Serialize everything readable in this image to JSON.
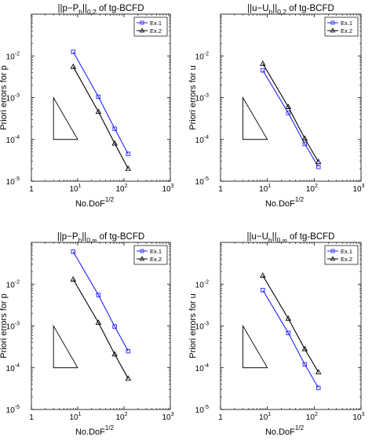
{
  "chart_data": [
    {
      "type": "line",
      "title": "||p−P_h||_{0,2} of tg-BCFD",
      "title_parts": {
        "a": "||p−P",
        "b": "h",
        "c": "||",
        "d": "0,2",
        "e": " of tg-BCFD"
      },
      "xlabel": "No.DoF",
      "xlabel_exp": "1/2",
      "ylabel": "Priori errors for p",
      "xscale": "log",
      "yscale": "log",
      "xlim": [
        1,
        1000
      ],
      "ylim": [
        1e-05,
        0.1
      ],
      "x_ticks": [
        "1",
        "2",
        "3"
      ],
      "y_ticks": [
        "-5",
        "-4",
        "-3",
        "-2"
      ],
      "grid": false,
      "legend_position": "top-right",
      "slope_triangle": {
        "x": [
          3,
          10
        ],
        "y": [
          0.0001,
          0.001
        ]
      },
      "series": [
        {
          "name": "Ex.1",
          "color": "#2323ff",
          "marker": "square",
          "x": [
            8,
            28,
            63,
            123
          ],
          "y": [
            0.0125,
            0.00105,
            0.00018,
            4.5e-05
          ]
        },
        {
          "name": "Ex.2",
          "color": "#000000",
          "marker": "triangle",
          "x": [
            8,
            28,
            63,
            123
          ],
          "y": [
            0.0055,
            0.00046,
            8e-05,
            2e-05
          ]
        }
      ]
    },
    {
      "type": "line",
      "title": "||u−U_h||_{0,2} of tg-BCFD",
      "title_parts": {
        "a": "||u−U",
        "b": "h",
        "c": "||",
        "d": "0,2",
        "e": " of tg-BCFD"
      },
      "xlabel": "No.DoF",
      "xlabel_exp": "1/2",
      "ylabel": "Priori errors for u",
      "xscale": "log",
      "yscale": "log",
      "xlim": [
        1,
        1000
      ],
      "ylim": [
        1e-05,
        0.1
      ],
      "x_ticks": [
        "1",
        "2",
        "3"
      ],
      "y_ticks": [
        "-5",
        "-4",
        "-3",
        "-2"
      ],
      "grid": false,
      "legend_position": "top-right",
      "slope_triangle": {
        "x": [
          3,
          10
        ],
        "y": [
          0.0001,
          0.001
        ]
      },
      "series": [
        {
          "name": "Ex.1",
          "color": "#2323ff",
          "marker": "square",
          "x": [
            8,
            28,
            63,
            123
          ],
          "y": [
            0.0045,
            0.00043,
            7.8e-05,
            2.2e-05
          ]
        },
        {
          "name": "Ex.2",
          "color": "#000000",
          "marker": "triangle",
          "x": [
            8,
            28,
            63,
            123
          ],
          "y": [
            0.0065,
            0.0006,
            0.000105,
            2.9e-05
          ]
        }
      ]
    },
    {
      "type": "line",
      "title": "||p−P_h||_{0,∞} of tg-BCFD",
      "title_parts": {
        "a": "||p−P",
        "b": "h",
        "c": "||",
        "d": "0,∞",
        "e": " of tg-BCFD"
      },
      "xlabel": "No.DoF",
      "xlabel_exp": "1/2",
      "ylabel": "Priori errors for p",
      "xscale": "log",
      "yscale": "log",
      "xlim": [
        1,
        1000
      ],
      "ylim": [
        1e-05,
        0.1
      ],
      "x_ticks": [
        "1",
        "2",
        "3"
      ],
      "y_ticks": [
        "-5",
        "-4",
        "-3",
        "-2"
      ],
      "grid": false,
      "legend_position": "top-right",
      "slope_triangle": {
        "x": [
          3,
          10
        ],
        "y": [
          0.0001,
          0.001
        ]
      },
      "series": [
        {
          "name": "Ex.1",
          "color": "#2323ff",
          "marker": "square",
          "x": [
            8,
            28,
            63,
            123
          ],
          "y": [
            0.06,
            0.0055,
            0.00097,
            0.00025
          ]
        },
        {
          "name": "Ex.2",
          "color": "#000000",
          "marker": "triangle",
          "x": [
            8,
            28,
            63,
            123
          ],
          "y": [
            0.013,
            0.0012,
            0.00021,
            5.5e-05
          ]
        }
      ]
    },
    {
      "type": "line",
      "title": "||u−U_h||_{0,∞} of tg-BCFD",
      "title_parts": {
        "a": "||u−U",
        "b": "h",
        "c": "||",
        "d": "0,∞",
        "e": " of tg-BCFD"
      },
      "xlabel": "No.DoF",
      "xlabel_exp": "1/2",
      "ylabel": "Priori errors for u",
      "xscale": "log",
      "yscale": "log",
      "xlim": [
        1,
        1000
      ],
      "ylim": [
        1e-05,
        0.1
      ],
      "x_ticks": [
        "1",
        "2",
        "3"
      ],
      "y_ticks": [
        "-5",
        "-4",
        "-3",
        "-2"
      ],
      "grid": false,
      "legend_position": "top-right",
      "slope_triangle": {
        "x": [
          3,
          10
        ],
        "y": [
          0.0001,
          0.001
        ]
      },
      "series": [
        {
          "name": "Ex.1",
          "color": "#2323ff",
          "marker": "square",
          "x": [
            8,
            28,
            63,
            123
          ],
          "y": [
            0.0072,
            0.00068,
            0.00012,
            3.3e-05
          ]
        },
        {
          "name": "Ex.2",
          "color": "#000000",
          "marker": "triangle",
          "x": [
            8,
            28,
            63,
            123
          ],
          "y": [
            0.016,
            0.0015,
            0.00028,
            7.8e-05
          ]
        }
      ]
    }
  ]
}
